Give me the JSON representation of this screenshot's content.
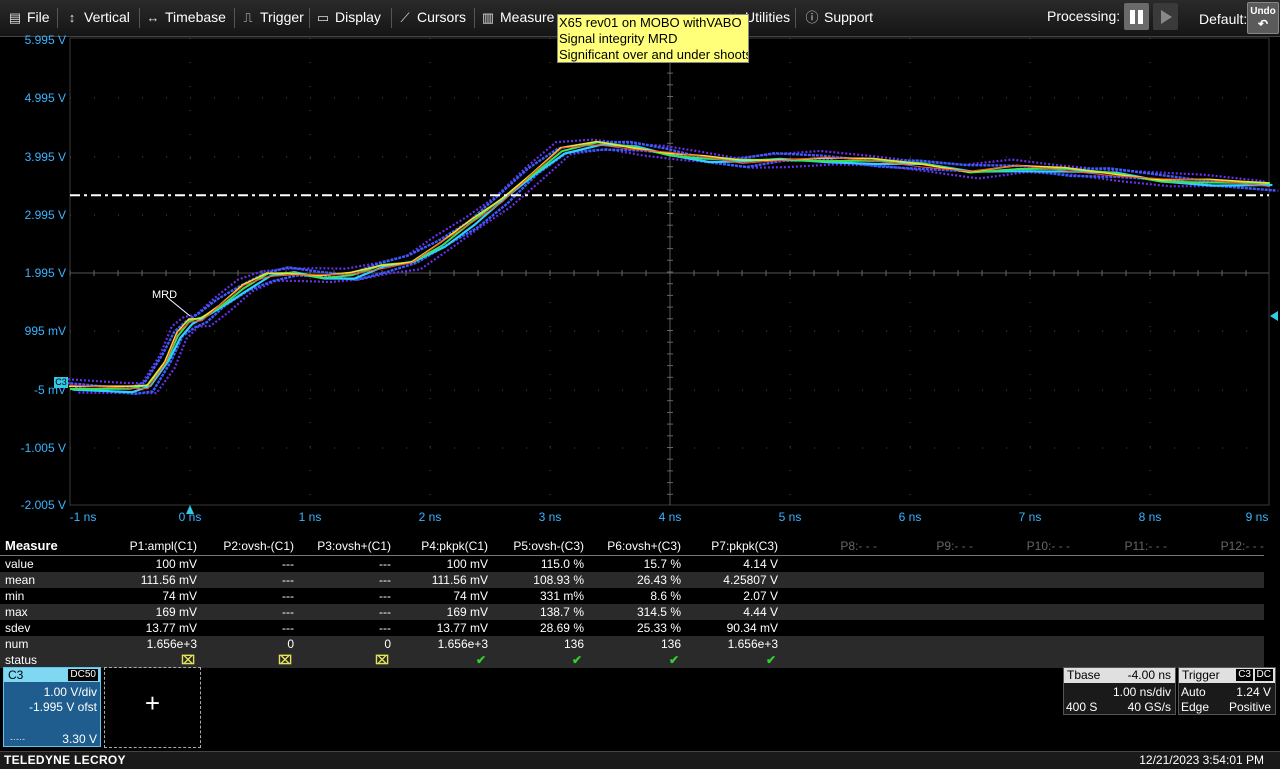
{
  "menu": {
    "file": "File",
    "vertical": "Vertical",
    "timebase": "Timebase",
    "trigger": "Trigger",
    "display": "Display",
    "cursors": "Cursors",
    "measure": "Measure",
    "utilities": "Utilities",
    "support": "Support"
  },
  "toolbar": {
    "processing_label": "Processing:",
    "default_label": "Default:",
    "undo_label": "Undo"
  },
  "tooltip": {
    "line1": "X65 rev01 on MOBO withVABO",
    "line2": "Signal integrity MRD",
    "line3": "Significant over and under shoots"
  },
  "axes": {
    "y_labels": [
      "5.995 V",
      "4.995 V",
      "3.995 V",
      "2.995 V",
      "1.995 V",
      "995 mV",
      "-5 mV",
      "-1.005 V",
      "-2.005 V"
    ],
    "x_labels": [
      "-1 ns",
      "0 ns",
      "1 ns",
      "2 ns",
      "3 ns",
      "4 ns",
      "5 ns",
      "6 ns",
      "7 ns",
      "8 ns",
      "9 ns"
    ]
  },
  "waveform": {
    "channel_marker": "C3",
    "annotation": "MRD",
    "threshold_v": 3.33,
    "colors": [
      "#6a2ff0",
      "#3b5cff",
      "#2fd0ff",
      "#39e35a",
      "#f0e030",
      "#ff4a2a"
    ]
  },
  "measure": {
    "title": "Measure",
    "params": [
      "P1:ampl(C1)",
      "P2:ovsh-(C1)",
      "P3:ovsh+(C1)",
      "P4:pkpk(C1)",
      "P5:ovsh-(C3)",
      "P6:ovsh+(C3)",
      "P7:pkpk(C3)",
      "P8:- - -",
      "P9:- - -",
      "P10:- - -",
      "P11:- - -",
      "P12:- - -"
    ],
    "rows": [
      {
        "label": "value",
        "cells": [
          "100 mV",
          "---",
          "---",
          "100 mV",
          "115.0 %",
          "15.7 %",
          "4.14 V"
        ]
      },
      {
        "label": "mean",
        "cells": [
          "111.56 mV",
          "---",
          "---",
          "111.56 mV",
          "108.93 %",
          "26.43 %",
          "4.25807 V"
        ]
      },
      {
        "label": "min",
        "cells": [
          "74 mV",
          "---",
          "---",
          "74 mV",
          "331 m%",
          "8.6 %",
          "2.07 V"
        ]
      },
      {
        "label": "max",
        "cells": [
          "169 mV",
          "---",
          "---",
          "169 mV",
          "138.7 %",
          "314.5 %",
          "4.44 V"
        ]
      },
      {
        "label": "sdev",
        "cells": [
          "13.77 mV",
          "---",
          "---",
          "13.77 mV",
          "28.69 %",
          "25.33 %",
          "90.34 mV"
        ]
      },
      {
        "label": "num",
        "cells": [
          "1.656e+3",
          "0",
          "0",
          "1.656e+3",
          "136",
          "136",
          "1.656e+3"
        ]
      }
    ],
    "status_label": "status",
    "status": [
      "warn",
      "warn",
      "warn",
      "ok",
      "ok",
      "ok",
      "ok"
    ]
  },
  "channel": {
    "name": "C3",
    "coupling": "DC50",
    "scale": "1.00 V/div",
    "offset": "-1.995 V ofst",
    "level": "3.30 V"
  },
  "timebase": {
    "title": "Tbase",
    "delay": "-4.00 ns",
    "scale": "1.00 ns/div",
    "samples": "400 S",
    "rate": "40 GS/s"
  },
  "trigger": {
    "title": "Trigger",
    "source": "C3",
    "coupling": "DC",
    "mode": "Auto",
    "level": "1.24 V",
    "type": "Edge",
    "slope": "Positive"
  },
  "footer": {
    "brand": "TELEDYNE LECROY",
    "datetime": "12/21/2023 3:54:01 PM"
  }
}
